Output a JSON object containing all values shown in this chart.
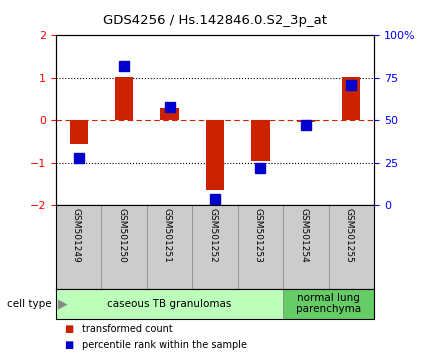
{
  "title": "GDS4256 / Hs.142846.0.S2_3p_at",
  "samples": [
    "GSM501249",
    "GSM501250",
    "GSM501251",
    "GSM501252",
    "GSM501253",
    "GSM501254",
    "GSM501255"
  ],
  "transformed_count": [
    -0.55,
    1.02,
    0.28,
    -1.65,
    -0.95,
    -0.05,
    1.02
  ],
  "percentile_rank": [
    28,
    82,
    58,
    4,
    22,
    47,
    71
  ],
  "ylim_left": [
    -2,
    2
  ],
  "ylim_right": [
    0,
    100
  ],
  "yticks_left": [
    -2,
    -1,
    0,
    1,
    2
  ],
  "yticks_right": [
    0,
    25,
    50,
    75,
    100
  ],
  "ytick_labels_right": [
    "0",
    "25",
    "50",
    "75",
    "100%"
  ],
  "bar_color": "#cc2200",
  "marker_color": "#0000cc",
  "cell_type_groups": [
    {
      "label": "caseous TB granulomas",
      "samples": [
        0,
        1,
        2,
        3,
        4
      ],
      "color": "#bbffbb"
    },
    {
      "label": "normal lung\nparenchyma",
      "samples": [
        5,
        6
      ],
      "color": "#66cc66"
    }
  ],
  "legend_items": [
    {
      "color": "#cc2200",
      "label": "transformed count"
    },
    {
      "color": "#0000cc",
      "label": "percentile rank within the sample"
    }
  ],
  "bar_width": 0.4,
  "marker_size": 7
}
